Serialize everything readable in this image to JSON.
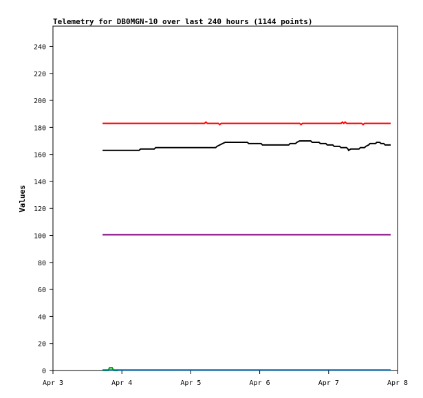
{
  "chart_data": {
    "type": "line",
    "title": "Telemetry for DB0MGN-10 over last 240 hours (1144 points)",
    "xlabel": "",
    "ylabel": "Values",
    "xlim": [
      "Apr 3",
      "Apr 8"
    ],
    "ylim": [
      0,
      255
    ],
    "x_ticks": [
      "Apr 3",
      "Apr 4",
      "Apr 5",
      "Apr 6",
      "Apr 7",
      "Apr 8"
    ],
    "y_ticks": [
      0,
      20,
      40,
      60,
      80,
      100,
      120,
      140,
      160,
      180,
      200,
      220,
      240
    ],
    "grid": false,
    "legend": "none",
    "series": [
      {
        "color": "#ff0000",
        "points": [
          [
            3.72,
            183
          ],
          [
            5.2,
            183
          ],
          [
            5.22,
            184
          ],
          [
            5.24,
            183
          ],
          [
            5.4,
            183
          ],
          [
            5.42,
            182
          ],
          [
            5.44,
            183
          ],
          [
            6.58,
            183
          ],
          [
            6.6,
            182
          ],
          [
            6.62,
            183
          ],
          [
            7.18,
            183
          ],
          [
            7.2,
            184
          ],
          [
            7.22,
            183
          ],
          [
            7.24,
            184
          ],
          [
            7.26,
            183
          ],
          [
            7.48,
            183
          ],
          [
            7.5,
            182
          ],
          [
            7.52,
            183
          ],
          [
            7.9,
            183
          ]
        ]
      },
      {
        "color": "#000000",
        "points": [
          [
            3.72,
            163
          ],
          [
            4.25,
            163
          ],
          [
            4.27,
            164
          ],
          [
            4.47,
            164
          ],
          [
            4.49,
            165
          ],
          [
            5.36,
            165
          ],
          [
            5.38,
            166
          ],
          [
            5.42,
            167
          ],
          [
            5.46,
            168
          ],
          [
            5.5,
            169
          ],
          [
            5.82,
            169
          ],
          [
            5.84,
            168
          ],
          [
            6.02,
            168
          ],
          [
            6.04,
            167
          ],
          [
            6.42,
            167
          ],
          [
            6.44,
            168
          ],
          [
            6.52,
            168
          ],
          [
            6.54,
            169
          ],
          [
            6.58,
            170
          ],
          [
            6.74,
            170
          ],
          [
            6.76,
            169
          ],
          [
            6.86,
            169
          ],
          [
            6.88,
            168
          ],
          [
            6.96,
            168
          ],
          [
            6.98,
            167
          ],
          [
            7.06,
            167
          ],
          [
            7.08,
            166
          ],
          [
            7.16,
            166
          ],
          [
            7.18,
            165
          ],
          [
            7.26,
            165
          ],
          [
            7.28,
            164
          ],
          [
            7.29,
            163
          ],
          [
            7.32,
            164
          ],
          [
            7.44,
            164
          ],
          [
            7.46,
            165
          ],
          [
            7.52,
            165
          ],
          [
            7.54,
            166
          ],
          [
            7.58,
            167
          ],
          [
            7.6,
            168
          ],
          [
            7.68,
            168
          ],
          [
            7.7,
            169
          ],
          [
            7.74,
            169
          ],
          [
            7.76,
            168
          ],
          [
            7.8,
            168
          ],
          [
            7.82,
            167
          ],
          [
            7.9,
            167
          ]
        ]
      },
      {
        "color": "#800080",
        "points": [
          [
            3.72,
            100.5
          ],
          [
            7.9,
            100.5
          ]
        ]
      },
      {
        "color": "#00a000",
        "points": [
          [
            3.72,
            0
          ],
          [
            3.8,
            0
          ],
          [
            3.82,
            2
          ],
          [
            3.86,
            2
          ],
          [
            3.88,
            0
          ],
          [
            3.95,
            0
          ]
        ]
      },
      {
        "color": "#0070c0",
        "points": [
          [
            3.72,
            0.4
          ],
          [
            7.9,
            0.4
          ]
        ]
      }
    ]
  }
}
